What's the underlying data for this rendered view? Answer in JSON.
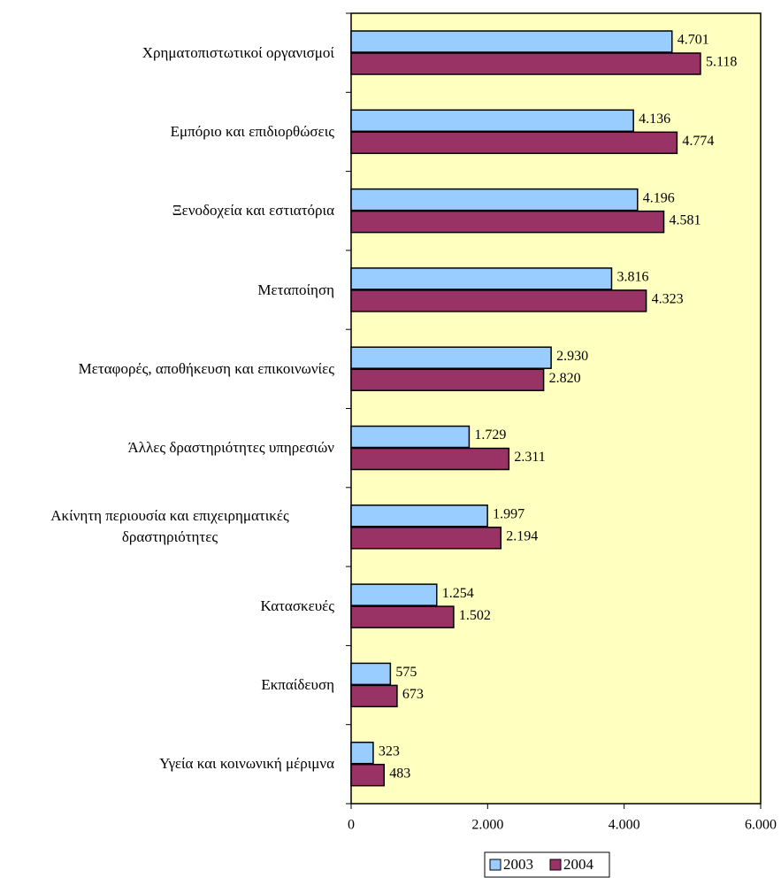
{
  "chart_data": {
    "type": "bar",
    "orientation": "horizontal",
    "categories": [
      "Χρηματοπιστωτικοί οργανισμοί",
      "Εμπόριο και επιδιορθώσεις",
      "Ξενοδοχεία και εστιατόρια",
      "Μεταποίηση",
      "Μεταφορές, αποθήκευση και επικοινωνίες",
      "Άλλες δραστηριότητες υπηρεσιών",
      "Ακίνητη περιουσία και επιχειρηματικές δραστηριότητες",
      "Κατασκευές",
      "Εκπαίδευση",
      "Υγεία και κοινωνική μέριμνα"
    ],
    "series": [
      {
        "name": "2003",
        "color": "#99ccff",
        "values": [
          4701,
          4136,
          4196,
          3816,
          2930,
          1729,
          1997,
          1254,
          575,
          323
        ],
        "value_labels": [
          "4.701",
          "4.136",
          "4.196",
          "3.816",
          "2.930",
          "1.729",
          "1.997",
          "1.254",
          "575",
          "323"
        ]
      },
      {
        "name": "2004",
        "color": "#993366",
        "values": [
          5118,
          4774,
          4581,
          4323,
          2820,
          2311,
          2194,
          1502,
          673,
          483
        ],
        "value_labels": [
          "5.118",
          "4.774",
          "4.581",
          "4.323",
          "2.820",
          "2.311",
          "2.194",
          "1.502",
          "673",
          "483"
        ]
      }
    ],
    "xlim": [
      0,
      6000
    ],
    "xticks": [
      0,
      {
        "value": 2000,
        "label": "2.000"
      },
      {
        "value": 4000,
        "label": "4.000"
      },
      {
        "value": 6000,
        "label": "6.000"
      }
    ],
    "plot_background": "#ffffc0",
    "legend": "bottom"
  }
}
